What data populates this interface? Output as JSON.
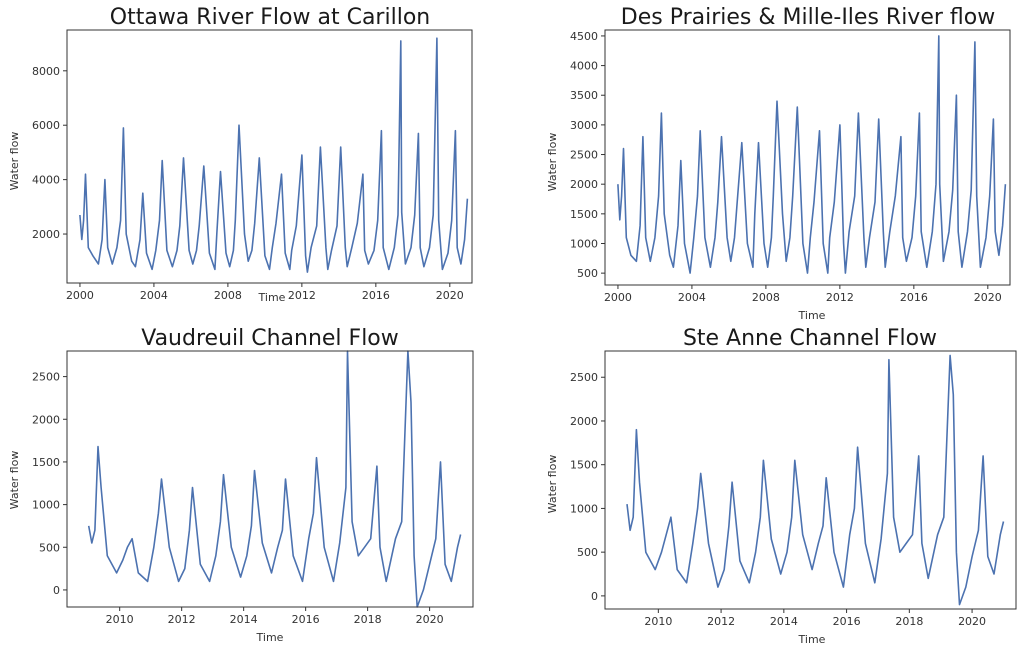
{
  "chart_data": [
    {
      "type": "line",
      "title": "Ottawa River Flow at Carillon",
      "xlabel": "Time",
      "ylabel": "Water flow",
      "xlim": [
        1999.3,
        2021.2
      ],
      "ylim": [
        200,
        9500
      ],
      "xticks": [
        2000,
        2004,
        2008,
        2012,
        2016,
        2020
      ],
      "yticks": [
        2000,
        4000,
        6000,
        8000
      ],
      "color": "#4c72b0",
      "series": [
        {
          "x": [
            2000.0,
            2000.1,
            2000.2,
            2000.3,
            2000.45,
            2000.7,
            2001.0,
            2001.2,
            2001.35,
            2001.5,
            2001.75,
            2002.0,
            2002.2,
            2002.35,
            2002.5,
            2002.8,
            2003.0,
            2003.25,
            2003.4,
            2003.6,
            2003.9,
            2004.1,
            2004.3,
            2004.45,
            2004.7,
            2005.0,
            2005.25,
            2005.4,
            2005.6,
            2005.9,
            2006.1,
            2006.3,
            2006.45,
            2006.7,
            2007.0,
            2007.3,
            2007.4,
            2007.6,
            2007.9,
            2008.1,
            2008.3,
            2008.4,
            2008.6,
            2008.9,
            2009.1,
            2009.3,
            2009.45,
            2009.7,
            2010.0,
            2010.25,
            2010.4,
            2010.6,
            2010.9,
            2011.1,
            2011.35,
            2011.45,
            2011.7,
            2012.0,
            2012.2,
            2012.3,
            2012.5,
            2012.8,
            2013.0,
            2013.3,
            2013.4,
            2013.6,
            2013.9,
            2014.1,
            2014.35,
            2014.45,
            2014.7,
            2015.0,
            2015.3,
            2015.4,
            2015.6,
            2015.9,
            2016.1,
            2016.3,
            2016.4,
            2016.7,
            2017.0,
            2017.2,
            2017.35,
            2017.4,
            2017.6,
            2017.9,
            2018.1,
            2018.3,
            2018.4,
            2018.6,
            2018.9,
            2019.1,
            2019.3,
            2019.4,
            2019.6,
            2019.9,
            2020.1,
            2020.3,
            2020.4,
            2020.6,
            2020.8,
            2020.95
          ],
          "y": [
            2700,
            1800,
            2500,
            4200,
            1500,
            1200,
            900,
            1800,
            4000,
            1500,
            900,
            1500,
            2500,
            5900,
            2000,
            1000,
            800,
            1800,
            3500,
            1300,
            700,
            1400,
            2500,
            4700,
            1400,
            800,
            1400,
            2300,
            4800,
            1400,
            900,
            1400,
            2300,
            4500,
            1300,
            700,
            2000,
            4300,
            1300,
            800,
            1400,
            2500,
            6000,
            2000,
            1000,
            1400,
            2400,
            4800,
            1200,
            700,
            1500,
            2400,
            4200,
            1300,
            700,
            1400,
            2300,
            4900,
            1200,
            600,
            1500,
            2300,
            5200,
            1500,
            700,
            1400,
            2300,
            5200,
            1500,
            800,
            1500,
            2400,
            4200,
            1400,
            900,
            1400,
            2500,
            5800,
            1500,
            700,
            1500,
            2700,
            9100,
            2800,
            900,
            1500,
            2700,
            5700,
            1500,
            800,
            1500,
            2700,
            9200,
            2500,
            700,
            1300,
            2500,
            5800,
            1500,
            900,
            1800,
            3300
          ]
        }
      ]
    },
    {
      "type": "line",
      "title": "Des Prairies & Mille-Iles River flow",
      "xlabel": "Time",
      "ylabel": "Water flow",
      "xlim": [
        1999.3,
        2021.2
      ],
      "ylim": [
        300,
        4600
      ],
      "xticks": [
        2000,
        2004,
        2008,
        2012,
        2016,
        2020
      ],
      "yticks": [
        500,
        1000,
        1500,
        2000,
        2500,
        3000,
        3500,
        4000,
        4500
      ],
      "color": "#4c72b0",
      "series": [
        {
          "x": [
            2000.0,
            2000.1,
            2000.2,
            2000.3,
            2000.45,
            2000.7,
            2001.0,
            2001.2,
            2001.35,
            2001.5,
            2001.75,
            2002.0,
            2002.2,
            2002.35,
            2002.5,
            2002.8,
            2003.0,
            2003.25,
            2003.4,
            2003.6,
            2003.9,
            2004.1,
            2004.3,
            2004.45,
            2004.7,
            2005.0,
            2005.25,
            2005.4,
            2005.6,
            2005.9,
            2006.1,
            2006.3,
            2006.45,
            2006.7,
            2007.0,
            2007.3,
            2007.4,
            2007.6,
            2007.9,
            2008.1,
            2008.3,
            2008.4,
            2008.6,
            2008.9,
            2009.1,
            2009.3,
            2009.45,
            2009.7,
            2010.0,
            2010.25,
            2010.4,
            2010.6,
            2010.9,
            2011.1,
            2011.35,
            2011.45,
            2011.7,
            2012.0,
            2012.2,
            2012.3,
            2012.5,
            2012.8,
            2013.0,
            2013.3,
            2013.4,
            2013.6,
            2013.9,
            2014.1,
            2014.35,
            2014.45,
            2014.7,
            2015.0,
            2015.3,
            2015.4,
            2015.6,
            2015.9,
            2016.1,
            2016.3,
            2016.4,
            2016.7,
            2017.0,
            2017.2,
            2017.35,
            2017.4,
            2017.6,
            2017.9,
            2018.1,
            2018.3,
            2018.4,
            2018.6,
            2018.9,
            2019.1,
            2019.3,
            2019.4,
            2019.6,
            2019.9,
            2020.1,
            2020.3,
            2020.4,
            2020.6,
            2020.8,
            2020.95
          ],
          "y": [
            2000,
            1400,
            1800,
            2600,
            1100,
            800,
            700,
            1300,
            2800,
            1100,
            700,
            1100,
            1800,
            3200,
            1500,
            800,
            600,
            1300,
            2400,
            1000,
            500,
            1100,
            1800,
            2900,
            1100,
            600,
            1100,
            1700,
            2800,
            1100,
            700,
            1100,
            1700,
            2700,
            1000,
            600,
            1500,
            2700,
            1000,
            600,
            1100,
            1800,
            3400,
            1500,
            700,
            1100,
            1800,
            3300,
            1000,
            500,
            1100,
            1700,
            2900,
            1000,
            500,
            1100,
            1700,
            3000,
            1000,
            500,
            1200,
            1800,
            3200,
            1100,
            600,
            1100,
            1700,
            3100,
            1200,
            600,
            1200,
            1800,
            2800,
            1100,
            700,
            1100,
            1800,
            3200,
            1200,
            600,
            1200,
            2000,
            4500,
            2000,
            700,
            1200,
            1900,
            3500,
            1200,
            600,
            1200,
            1900,
            4400,
            1800,
            600,
            1100,
            1800,
            3100,
            1200,
            800,
            1300,
            2000
          ]
        }
      ]
    },
    {
      "type": "line",
      "title": "Vaudreuil Channel Flow",
      "xlabel": "Time",
      "ylabel": "Water flow",
      "xlim": [
        2008.3,
        2021.4
      ],
      "ylim": [
        -200,
        2800
      ],
      "xticks": [
        2010,
        2012,
        2014,
        2016,
        2018,
        2020
      ],
      "yticks": [
        0,
        500,
        1000,
        1500,
        2000,
        2500
      ],
      "color": "#4c72b0",
      "series": [
        {
          "x": [
            2009.0,
            2009.1,
            2009.2,
            2009.3,
            2009.4,
            2009.6,
            2009.9,
            2010.1,
            2010.25,
            2010.4,
            2010.6,
            2010.9,
            2011.1,
            2011.25,
            2011.35,
            2011.6,
            2011.9,
            2012.1,
            2012.25,
            2012.35,
            2012.6,
            2012.9,
            2013.1,
            2013.25,
            2013.35,
            2013.6,
            2013.9,
            2014.1,
            2014.25,
            2014.35,
            2014.6,
            2014.9,
            2015.1,
            2015.25,
            2015.35,
            2015.6,
            2015.9,
            2016.1,
            2016.25,
            2016.35,
            2016.6,
            2016.9,
            2017.1,
            2017.3,
            2017.35,
            2017.5,
            2017.7,
            2017.9,
            2018.1,
            2018.3,
            2018.4,
            2018.6,
            2018.9,
            2019.1,
            2019.3,
            2019.4,
            2019.5,
            2019.6,
            2019.8,
            2020.0,
            2020.2,
            2020.35,
            2020.5,
            2020.7,
            2020.9,
            2021.0
          ],
          "y": [
            750,
            550,
            700,
            1680,
            1200,
            400,
            200,
            350,
            500,
            600,
            200,
            100,
            500,
            900,
            1300,
            500,
            100,
            250,
            700,
            1200,
            300,
            100,
            400,
            800,
            1350,
            500,
            150,
            400,
            750,
            1400,
            550,
            200,
            500,
            700,
            1300,
            400,
            100,
            600,
            900,
            1550,
            500,
            100,
            550,
            1200,
            2800,
            800,
            400,
            500,
            600,
            1450,
            500,
            100,
            600,
            800,
            2800,
            2200,
            400,
            -200,
            0,
            300,
            600,
            1500,
            300,
            100,
            500,
            650
          ]
        }
      ]
    },
    {
      "type": "line",
      "title": "Ste Anne Channel Flow",
      "xlabel": "Time",
      "ylabel": "Water flow",
      "xlim": [
        2008.3,
        2021.4
      ],
      "ylim": [
        -150,
        2800
      ],
      "xticks": [
        2010,
        2012,
        2014,
        2016,
        2018,
        2020
      ],
      "yticks": [
        0,
        500,
        1000,
        1500,
        2000,
        2500
      ],
      "color": "#4c72b0",
      "series": [
        {
          "x": [
            2009.0,
            2009.1,
            2009.2,
            2009.3,
            2009.4,
            2009.6,
            2009.9,
            2010.1,
            2010.25,
            2010.4,
            2010.6,
            2010.9,
            2011.1,
            2011.25,
            2011.35,
            2011.6,
            2011.9,
            2012.1,
            2012.25,
            2012.35,
            2012.6,
            2012.9,
            2013.1,
            2013.25,
            2013.35,
            2013.6,
            2013.9,
            2014.1,
            2014.25,
            2014.35,
            2014.6,
            2014.9,
            2015.1,
            2015.25,
            2015.35,
            2015.6,
            2015.9,
            2016.1,
            2016.25,
            2016.35,
            2016.6,
            2016.9,
            2017.1,
            2017.3,
            2017.35,
            2017.5,
            2017.7,
            2017.9,
            2018.1,
            2018.3,
            2018.4,
            2018.6,
            2018.9,
            2019.1,
            2019.3,
            2019.4,
            2019.5,
            2019.6,
            2019.8,
            2020.0,
            2020.2,
            2020.35,
            2020.5,
            2020.7,
            2020.9,
            2021.0
          ],
          "y": [
            1050,
            750,
            900,
            1900,
            1300,
            500,
            300,
            500,
            700,
            900,
            300,
            150,
            600,
            1000,
            1400,
            600,
            100,
            300,
            800,
            1300,
            400,
            150,
            500,
            900,
            1550,
            650,
            250,
            500,
            900,
            1550,
            700,
            300,
            600,
            800,
            1350,
            500,
            100,
            700,
            1000,
            1700,
            600,
            150,
            650,
            1400,
            2700,
            900,
            500,
            600,
            700,
            1600,
            600,
            200,
            700,
            900,
            2750,
            2300,
            500,
            -100,
            100,
            450,
            750,
            1600,
            450,
            250,
            700,
            850
          ]
        }
      ]
    }
  ]
}
